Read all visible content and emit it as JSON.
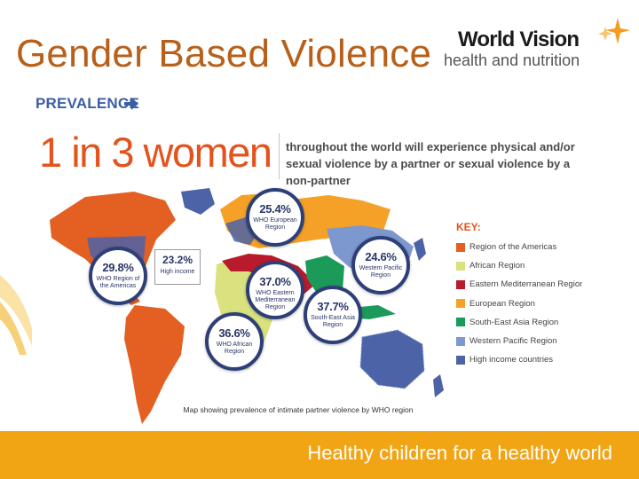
{
  "slide": {
    "title": "Gender Based Violence",
    "logo": {
      "name": "World Vision",
      "tagline": "health and nutrition"
    },
    "footer": "Healthy children for a healthy world"
  },
  "infographic": {
    "heading": "PREVALENCE",
    "big_stat": "1 in 3 women",
    "description": "throughout the world will experience physical and/or sexual violence by a partner or sexual violence by a non-partner",
    "key_title": "KEY:",
    "key": [
      {
        "label": "Region of the Americas",
        "color": "#e35f22"
      },
      {
        "label": "African Region",
        "color": "#d9e27e"
      },
      {
        "label": "Eastern Mediterranean Region",
        "color": "#b81b2c"
      },
      {
        "label": "European Region",
        "color": "#f5a127"
      },
      {
        "label": "South-East Asia Region",
        "color": "#1c9a5a"
      },
      {
        "label": "Western Pacific Region",
        "color": "#7d97cf"
      },
      {
        "label": "High income countries",
        "color": "#4d63a8"
      }
    ],
    "bubbles": [
      {
        "id": "europe",
        "value": "25.4%",
        "region": "WHO European Region"
      },
      {
        "id": "americas",
        "value": "29.8%",
        "region": "WHO Region of the Americas"
      },
      {
        "id": "eastern-med",
        "value": "37.0%",
        "region": "WHO Eastern Mediterranean Region"
      },
      {
        "id": "western-pacific",
        "value": "24.6%",
        "region": "Western Pacific Region"
      },
      {
        "id": "south-east-asia",
        "value": "37.7%",
        "region": "South-East Asia Region"
      },
      {
        "id": "africa",
        "value": "36.6%",
        "region": "WHO African Region"
      }
    ],
    "high_income": {
      "value": "23.2%",
      "label": "High income"
    },
    "caption": "Map showing prevalence of intimate partner violence by WHO region"
  }
}
